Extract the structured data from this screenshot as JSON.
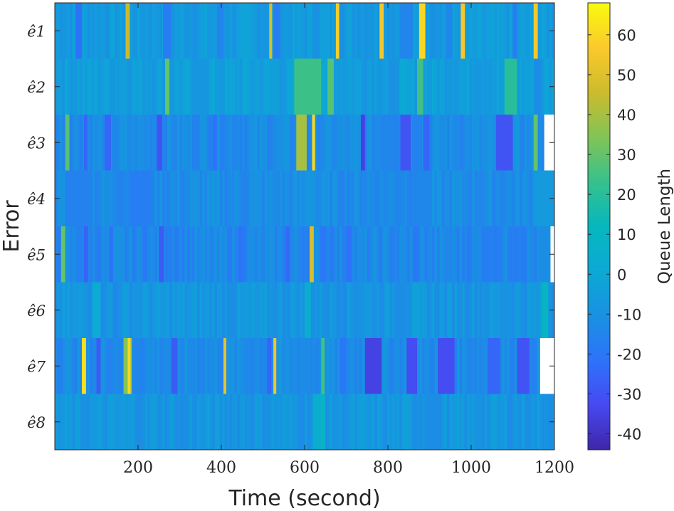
{
  "chart_data": {
    "type": "heatmap",
    "title": "",
    "xlabel": "Time (second)",
    "ylabel": "Error",
    "colorbar_label": "Queue Length",
    "xlim": [
      0,
      1200
    ],
    "x_ticks": [
      200,
      400,
      600,
      800,
      1000,
      1200
    ],
    "x_tick_labels": [
      "200",
      "400",
      "600",
      "800",
      "1000",
      "1200"
    ],
    "colorbar_range": [
      -44,
      68
    ],
    "colorbar_ticks": [
      60,
      50,
      40,
      30,
      20,
      10,
      0,
      -10,
      -20,
      -30,
      -40
    ],
    "colorbar_tick_labels": [
      "60",
      "50",
      "40",
      "30",
      "20",
      "10",
      "0",
      "-10",
      "-20",
      "-30",
      "-40"
    ],
    "colormap": "parula",
    "rows": [
      {
        "name": "ê1",
        "base": -6,
        "end": 1200,
        "bands": [
          {
            "x": [
              50,
              65
            ],
            "v": -22
          },
          {
            "x": [
              170,
              180
            ],
            "v": 45
          },
          {
            "x": [
              260,
              280
            ],
            "v": -18
          },
          {
            "x": [
              390,
              405
            ],
            "v": -15
          },
          {
            "x": [
              515,
              522
            ],
            "v": 48
          },
          {
            "x": [
              525,
              540
            ],
            "v": -18
          },
          {
            "x": [
              675,
              683
            ],
            "v": 58
          },
          {
            "x": [
              780,
              790
            ],
            "v": 55
          },
          {
            "x": [
              830,
              860
            ],
            "v": -15
          },
          {
            "x": [
              875,
              890
            ],
            "v": 60
          },
          {
            "x": [
              940,
              955
            ],
            "v": -14
          },
          {
            "x": [
              975,
              985
            ],
            "v": 55
          },
          {
            "x": [
              1100,
              1110
            ],
            "v": -18
          },
          {
            "x": [
              1150,
              1160
            ],
            "v": 55
          }
        ]
      },
      {
        "name": "ê2",
        "base": -4,
        "end": 1200,
        "bands": [
          {
            "x": [
              265,
              275
            ],
            "v": 30
          },
          {
            "x": [
              330,
              370
            ],
            "v": -8
          },
          {
            "x": [
              575,
              640
            ],
            "v": 24
          },
          {
            "x": [
              655,
              670
            ],
            "v": 28
          },
          {
            "x": [
              800,
              820
            ],
            "v": -10
          },
          {
            "x": [
              870,
              885
            ],
            "v": 25
          },
          {
            "x": [
              1080,
              1110
            ],
            "v": 20
          },
          {
            "x": [
              1150,
              1170
            ],
            "v": -12
          }
        ]
      },
      {
        "name": "ê3",
        "base": -12,
        "end": 1175,
        "bands": [
          {
            "x": [
              25,
              35
            ],
            "v": 28
          },
          {
            "x": [
              70,
              78
            ],
            "v": -25
          },
          {
            "x": [
              120,
              135
            ],
            "v": -25
          },
          {
            "x": [
              245,
              258
            ],
            "v": -30
          },
          {
            "x": [
              380,
              390
            ],
            "v": -22
          },
          {
            "x": [
              580,
              605
            ],
            "v": 40
          },
          {
            "x": [
              618,
              625
            ],
            "v": 60
          },
          {
            "x": [
              735,
              745
            ],
            "v": -35
          },
          {
            "x": [
              830,
              855
            ],
            "v": -30
          },
          {
            "x": [
              885,
              900
            ],
            "v": -25
          },
          {
            "x": [
              1060,
              1100
            ],
            "v": -30
          },
          {
            "x": [
              1150,
              1160
            ],
            "v": 30
          }
        ]
      },
      {
        "name": "ê4",
        "base": -12,
        "end": 1200,
        "bands": [
          {
            "x": [
              25,
              90
            ],
            "v": -16
          },
          {
            "x": [
              180,
              230
            ],
            "v": -18
          },
          {
            "x": [
              600,
              625
            ],
            "v": -8
          },
          {
            "x": [
              870,
              900
            ],
            "v": -14
          },
          {
            "x": [
              1150,
              1200
            ],
            "v": -6
          }
        ]
      },
      {
        "name": "ê5",
        "base": -14,
        "end": 1190,
        "bands": [
          {
            "x": [
              15,
              25
            ],
            "v": 30
          },
          {
            "x": [
              70,
              80
            ],
            "v": -26
          },
          {
            "x": [
              130,
              140
            ],
            "v": -22
          },
          {
            "x": [
              250,
              262
            ],
            "v": -28
          },
          {
            "x": [
              440,
              450
            ],
            "v": -22
          },
          {
            "x": [
              555,
              565
            ],
            "v": -24
          },
          {
            "x": [
              612,
              622
            ],
            "v": 48
          },
          {
            "x": [
              640,
              650
            ],
            "v": -20
          },
          {
            "x": [
              700,
              712
            ],
            "v": -22
          },
          {
            "x": [
              860,
              872
            ],
            "v": -20
          },
          {
            "x": [
              1040,
              1050
            ],
            "v": -18
          }
        ]
      },
      {
        "name": "ê6",
        "base": -8,
        "end": 1200,
        "bands": [
          {
            "x": [
              90,
              110
            ],
            "v": 2
          },
          {
            "x": [
              140,
              150
            ],
            "v": -14
          },
          {
            "x": [
              600,
              615
            ],
            "v": 4
          },
          {
            "x": [
              1170,
              1185
            ],
            "v": 10
          }
        ]
      },
      {
        "name": "ê7",
        "base": -12,
        "end": 1165,
        "bands": [
          {
            "x": [
              65,
              75
            ],
            "v": 62
          },
          {
            "x": [
              100,
              110
            ],
            "v": -28
          },
          {
            "x": [
              165,
              185
            ],
            "v": 35
          },
          {
            "x": [
              175,
              182
            ],
            "v": 60
          },
          {
            "x": [
              280,
              295
            ],
            "v": -28
          },
          {
            "x": [
              405,
              412
            ],
            "v": 52
          },
          {
            "x": [
              510,
              520
            ],
            "v": -25
          },
          {
            "x": [
              525,
              532
            ],
            "v": 55
          },
          {
            "x": [
              640,
              648
            ],
            "v": 25
          },
          {
            "x": [
              685,
              700
            ],
            "v": -20
          },
          {
            "x": [
              745,
              785
            ],
            "v": -35
          },
          {
            "x": [
              845,
              870
            ],
            "v": -32
          },
          {
            "x": [
              920,
              960
            ],
            "v": -32
          },
          {
            "x": [
              1040,
              1070
            ],
            "v": -25
          },
          {
            "x": [
              1110,
              1140
            ],
            "v": -30
          }
        ]
      },
      {
        "name": "ê8",
        "base": -8,
        "end": 1200,
        "bands": [
          {
            "x": [
              300,
              320
            ],
            "v": -12
          },
          {
            "x": [
              620,
              650
            ],
            "v": 4
          },
          {
            "x": [
              640,
              648
            ],
            "v": 10
          },
          {
            "x": [
              900,
              930
            ],
            "v": -12
          }
        ]
      }
    ]
  }
}
